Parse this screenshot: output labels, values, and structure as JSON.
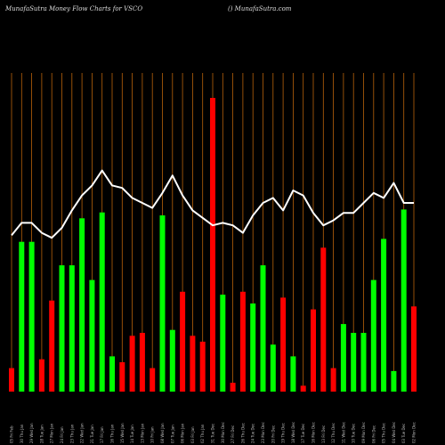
{
  "header": {
    "left_text": "MunafaSutra  Money Flow  Charts for VSCO",
    "right_text": "() MunafaSutra.com"
  },
  "colors": {
    "background": "#000000",
    "up": "#00ff00",
    "down": "#ff0000",
    "grid": "#b8620a",
    "line": "#ffffff"
  },
  "chart_data": {
    "type": "bar",
    "title": "",
    "xlabel": "",
    "ylabel": "",
    "grid": true,
    "categories": [
      "05 Fri Feb 2025",
      "30 Thu Jan 2025",
      "29 Wed Jan 2025",
      "28 Tue Jan 2025",
      "27 Mon Jan 2025",
      "24 Fri Jan 2025",
      "23 Thu Jan 2025",
      "22 Wed Jan 2025",
      "21 Tue Jan 2025",
      "17 Fri Jan 2025",
      "16 Thu Jan 2025",
      "15 Wed Jan 2025",
      "14 Tue Jan 2025",
      "13 Mon Jan 2025",
      "10 Fri Jan 2025",
      "08 Wed Jan 2025",
      "07 Tue Jan 2025",
      "06 Mon Jan 2025",
      "03 Fri Jan 2025",
      "02 Thu Jan 2025",
      "31 Tue Dec 2024",
      "30 Mon Dec 2024",
      "27 Fri Dec 2024",
      "26 Thu Dec 2024",
      "24 Tue Dec 2024",
      "23 Mon Dec 2024",
      "20 Fri Dec 2024",
      "19 Thu Dec 2024",
      "18 Wed Dec 2024",
      "17 Tue Dec 2024",
      "16 Mon Dec 2024",
      "13 Fri Dec 2024",
      "12 Thu Dec 2024",
      "11 Wed Dec 2024",
      "10 Tue Dec 2024",
      "09 Mon Dec 2024",
      "06 Fri Dec 2024",
      "05 Thu Dec 2024",
      "04 Wed Dec 2024",
      "03 Tue Dec 2024",
      "02 Mon Dec 2024"
    ],
    "x_tick_labels": [
      "05 Fri Feb",
      "30 Thu Jan",
      "29 Wed Jan",
      "28 Tue Jan",
      "27 Mon Jan",
      "24 Fri Jan",
      "23 Thu Jan",
      "22 Wed Jan",
      "21 Tue Jan",
      "17 Fri Jan",
      "16 Thu Jan",
      "15 Wed Jan",
      "14 Tue Jan",
      "13 Mon Jan",
      "10 Fri Jan",
      "08 Wed Jan",
      "07 Tue Jan",
      "06 Mon Jan",
      "03 Fri Jan",
      "02 Thu Jan",
      "31 Tue Dec",
      "30 Mon Dec",
      "27 Fri Dec",
      "26 Thu Dec",
      "24 Tue Dec",
      "23 Mon Dec",
      "20 Fri Dec",
      "19 Thu Dec",
      "18 Wed Dec",
      "17 Tue Dec",
      "16 Mon Dec",
      "13 Fri Dec",
      "12 Thu Dec",
      "11 Wed Dec",
      "10 Tue Dec",
      "09 Mon Dec",
      "06 Fri Dec",
      "05 Thu Dec",
      "04 Wed Dec",
      "03 Tue Dec",
      "02 Mon Dec"
    ],
    "bar_values": [
      8,
      51,
      51,
      11,
      31,
      43,
      43,
      59,
      38,
      61,
      12,
      10,
      19,
      20,
      8,
      60,
      21,
      34,
      19,
      17,
      100,
      33,
      3,
      34,
      30,
      43,
      16,
      32,
      12,
      2,
      28,
      49,
      8,
      23,
      20,
      20,
      38,
      52,
      7,
      62,
      29
    ],
    "bar_direction": [
      "down",
      "up",
      "up",
      "down",
      "down",
      "up",
      "up",
      "up",
      "up",
      "up",
      "up",
      "down",
      "down",
      "down",
      "down",
      "up",
      "up",
      "down",
      "down",
      "down",
      "down",
      "up",
      "down",
      "down",
      "up",
      "up",
      "up",
      "down",
      "up",
      "down",
      "down",
      "down",
      "down",
      "up",
      "up",
      "up",
      "up",
      "up",
      "up",
      "up",
      "down"
    ],
    "line_values": [
      62,
      67,
      67,
      63,
      61,
      65,
      72,
      78,
      82,
      88,
      82,
      81,
      77,
      75,
      73,
      79,
      86,
      78,
      72,
      69,
      66,
      67,
      66,
      63,
      70,
      75,
      77,
      72,
      80,
      78,
      71,
      66,
      68,
      71,
      71,
      75,
      79,
      77,
      83,
      75,
      75
    ],
    "ylim": [
      0,
      100
    ]
  }
}
